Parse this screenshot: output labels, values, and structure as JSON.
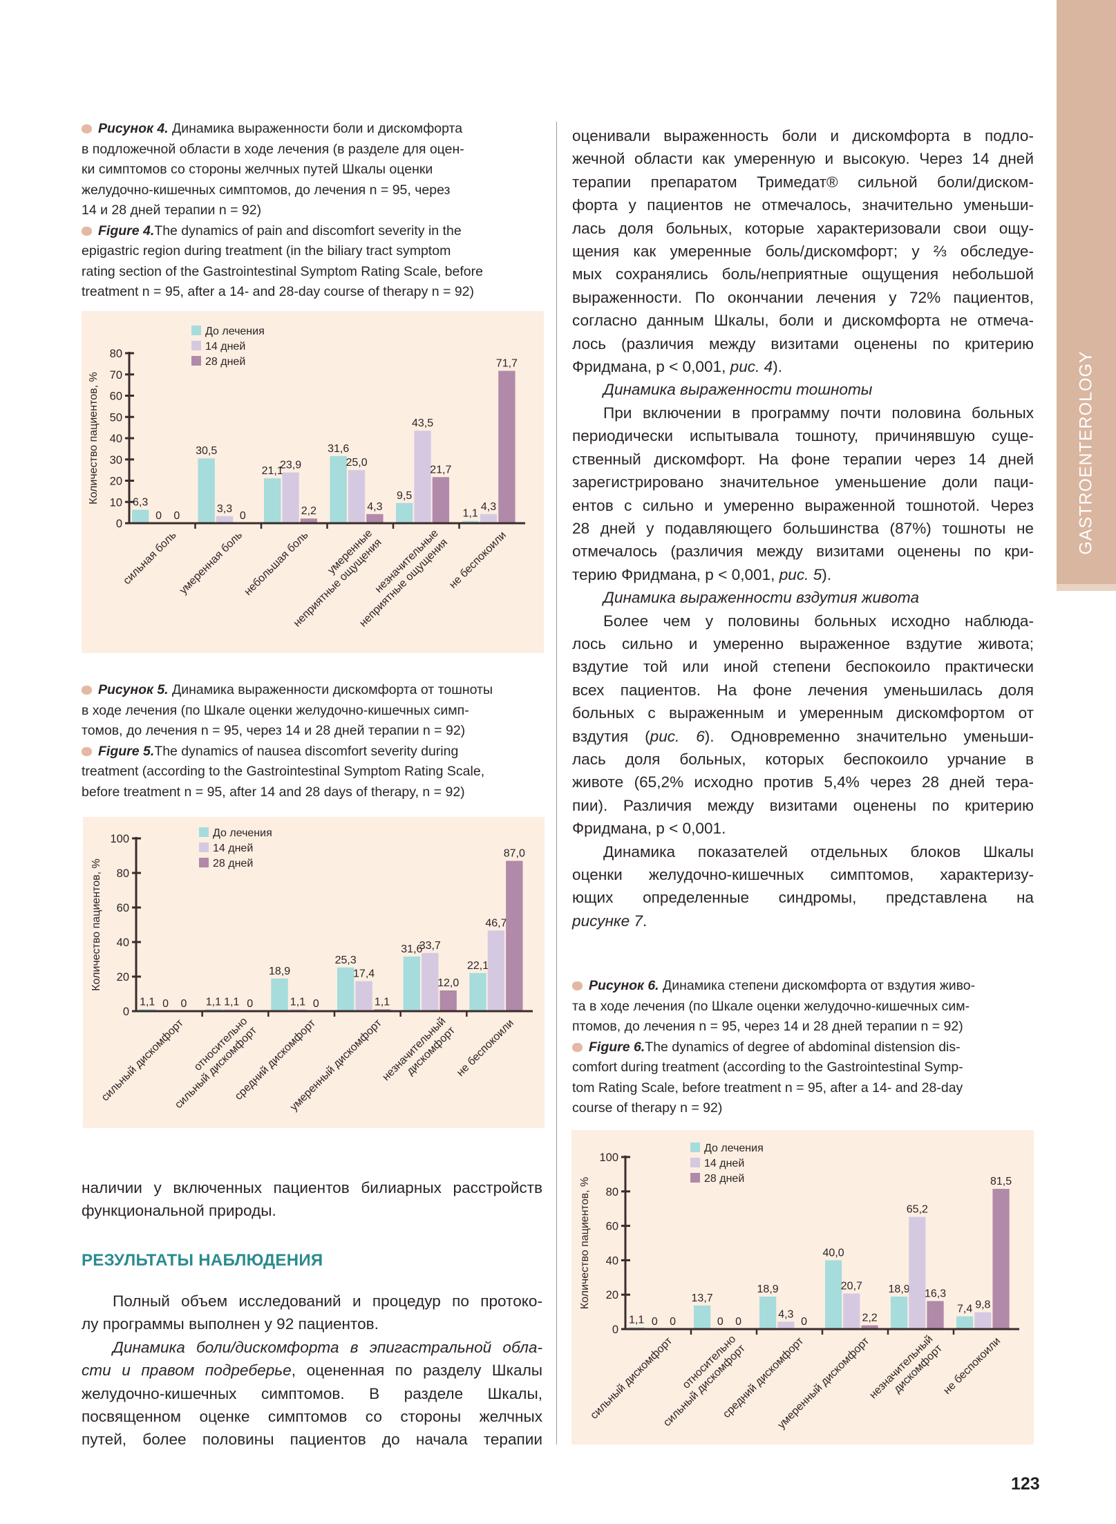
{
  "side_tab": {
    "label": "GASTROENTEROLOGY",
    "color": "#d9b6a0"
  },
  "page_number": "123",
  "colors": {
    "before": "#a6dcdc",
    "day14": "#d5c9e2",
    "day28": "#b08aa8",
    "chart_bg": "#fdeee2",
    "heading": "#2a8b8f"
  },
  "captions": [
    {
      "ru": [
        [
          [
            "Рисунок 4.",
            "b"
          ],
          [
            " Динамика выраженности боли и дискомфорта",
            ""
          ]
        ],
        [
          [
            "в подложечной области в ходе лечения (в разделе для оцен-",
            ""
          ]
        ],
        [
          [
            "ки симптомов со стороны желчных путей Шкалы оценки",
            ""
          ]
        ],
        [
          [
            "желудочно-кишечных симптомов, до лечения n = 95, через",
            ""
          ]
        ],
        [
          [
            "14 и 28 дней терапии n = 92)",
            ""
          ]
        ]
      ],
      "en": [
        [
          [
            "Figure 4.",
            "b"
          ],
          [
            "The dynamics of pain and discomfort severity in the",
            ""
          ]
        ],
        [
          [
            "epigastric region during treatment (in the biliary tract symptom",
            ""
          ]
        ],
        [
          [
            "rating section of the Gastrointestinal Symptom Rating Scale, before",
            ""
          ]
        ],
        [
          [
            "treatment n = 95, after a 14- and 28-day course of therapy n = 92)",
            ""
          ]
        ]
      ]
    },
    {
      "ru": [
        [
          [
            "Рисунок 5.",
            "b"
          ],
          [
            " Динамика выраженности дискомфорта от тошноты",
            ""
          ]
        ],
        [
          [
            "в ходе лечения (по Шкале оценки желудочно-кишечных симп-",
            ""
          ]
        ],
        [
          [
            "томов, до лечения n = 95, через 14 и 28 дней терапии n = 92)",
            ""
          ]
        ]
      ],
      "en": [
        [
          [
            "Figure 5.",
            "b"
          ],
          [
            "The dynamics of nausea discomfort severity during",
            ""
          ]
        ],
        [
          [
            "treatment (according to the Gastrointestinal Symptom Rating Scale,",
            ""
          ]
        ],
        [
          [
            "before treatment n = 95, after 14 and 28 days of therapy, n = 92)",
            ""
          ]
        ]
      ]
    },
    {
      "ru": [
        [
          [
            "Рисунок 6.",
            "b"
          ],
          [
            " Динамика степени дискомфорта от вздутия живо-",
            ""
          ]
        ],
        [
          [
            "та в ходе лечения (по Шкале оценки желудочно-кишечных сим-",
            ""
          ]
        ],
        [
          [
            "птомов, до лечения n = 95, через 14 и 28 дней терапии n = 92)",
            ""
          ]
        ]
      ],
      "en": [
        [
          [
            "Figure 6.",
            "b"
          ],
          [
            "The dynamics of degree of abdominal distension dis-",
            ""
          ]
        ],
        [
          [
            "comfort during treatment (according to the Gastrointestinal Symp-",
            ""
          ]
        ],
        [
          [
            "tom Rating Scale, before treatment n = 95, after a 14- and 28-day",
            ""
          ]
        ],
        [
          [
            "course of therapy n = 92)",
            ""
          ]
        ]
      ]
    }
  ],
  "left_text": {
    "intro": [
      {
        "ind": false,
        "last": false,
        "seg": [
          [
            "наличии у включенных пациентов билиарных расстройств",
            ""
          ]
        ]
      },
      {
        "ind": false,
        "last": true,
        "seg": [
          [
            "функциональной природы.",
            ""
          ]
        ]
      }
    ],
    "heading": "РЕЗУЛЬТАТЫ НАБЛЮДЕНИЯ",
    "para": [
      {
        "ind": true,
        "last": false,
        "seg": [
          [
            "Полный объем исследований и процедур по протоко-",
            ""
          ]
        ]
      },
      {
        "ind": false,
        "last": true,
        "seg": [
          [
            "лу программы выполнен у 92 пациентов.",
            ""
          ]
        ]
      },
      {
        "ind": true,
        "last": false,
        "seg": [
          [
            "Динамика боли/дискомфорта в эпигастральной обла-",
            "i"
          ]
        ]
      },
      {
        "ind": false,
        "last": false,
        "seg": [
          [
            "сти и правом подреберье",
            "i"
          ],
          [
            ", оцененная по разделу Шкалы",
            ""
          ]
        ]
      },
      {
        "ind": false,
        "last": false,
        "seg": [
          [
            "желудочно-кишечных симптомов. В разделе Шкалы,",
            ""
          ]
        ]
      },
      {
        "ind": false,
        "last": false,
        "seg": [
          [
            "посвященном оценке симптомов со стороны желчных",
            ""
          ]
        ]
      },
      {
        "ind": false,
        "last": false,
        "seg": [
          [
            "путей, более половины пациентов до начала терапии",
            ""
          ]
        ]
      }
    ]
  },
  "right_text": [
    {
      "ind": false,
      "last": false,
      "seg": [
        [
          "оценивали выраженность боли и дискомфорта в подло-",
          ""
        ]
      ]
    },
    {
      "ind": false,
      "last": false,
      "seg": [
        [
          "жечной области как умеренную и высокую. Через 14 дней",
          ""
        ]
      ]
    },
    {
      "ind": false,
      "last": false,
      "seg": [
        [
          "терапии препаратом Тримедат® сильной боли/диском-",
          ""
        ]
      ]
    },
    {
      "ind": false,
      "last": false,
      "seg": [
        [
          "форта у пациентов не отмечалось, значительно уменьши-",
          ""
        ]
      ]
    },
    {
      "ind": false,
      "last": false,
      "seg": [
        [
          "лась доля больных, которые характеризовали свои ощу-",
          ""
        ]
      ]
    },
    {
      "ind": false,
      "last": false,
      "seg": [
        [
          "щения как умеренные боль/дискомфорт; у ⅔ обследуе-",
          ""
        ]
      ]
    },
    {
      "ind": false,
      "last": false,
      "seg": [
        [
          "мых сохранялись боль/неприятные ощущения небольшой",
          ""
        ]
      ]
    },
    {
      "ind": false,
      "last": false,
      "seg": [
        [
          "выраженности. По окончании лечения у 72% пациентов,",
          ""
        ]
      ]
    },
    {
      "ind": false,
      "last": false,
      "seg": [
        [
          "согласно данным Шкалы, боли и дискомфорта не отмеча-",
          ""
        ]
      ]
    },
    {
      "ind": false,
      "last": false,
      "seg": [
        [
          "лось (различия между визитами оценены по критерию",
          ""
        ]
      ]
    },
    {
      "ind": false,
      "last": true,
      "seg": [
        [
          "Фридмана, p < 0,001, ",
          ""
        ],
        [
          "рис. 4",
          "i"
        ],
        [
          ").",
          ""
        ]
      ]
    },
    {
      "ind": true,
      "last": true,
      "seg": [
        [
          "Динамика выраженности тошноты",
          "i"
        ]
      ]
    },
    {
      "ind": true,
      "last": false,
      "seg": [
        [
          "При включении в программу почти половина больных",
          ""
        ]
      ]
    },
    {
      "ind": false,
      "last": false,
      "seg": [
        [
          "периодически испытывала тошноту, причинявшую суще-",
          ""
        ]
      ]
    },
    {
      "ind": false,
      "last": false,
      "seg": [
        [
          "ственный дискомфорт. На фоне терапии через 14 дней",
          ""
        ]
      ]
    },
    {
      "ind": false,
      "last": false,
      "seg": [
        [
          "зарегистрировано значительное уменьшение доли паци-",
          ""
        ]
      ]
    },
    {
      "ind": false,
      "last": false,
      "seg": [
        [
          "ентов с сильно и умеренно выраженной тошнотой. Через",
          ""
        ]
      ]
    },
    {
      "ind": false,
      "last": false,
      "seg": [
        [
          "28 дней у подавляющего большинства (87%) тошноты не",
          ""
        ]
      ]
    },
    {
      "ind": false,
      "last": false,
      "seg": [
        [
          "отмечалось (различия между визитами оценены по кри-",
          ""
        ]
      ]
    },
    {
      "ind": false,
      "last": true,
      "seg": [
        [
          "терию Фридмана, p < 0,001, ",
          ""
        ],
        [
          "рис. 5",
          "i"
        ],
        [
          ").",
          ""
        ]
      ]
    },
    {
      "ind": true,
      "last": true,
      "seg": [
        [
          "Динамика выраженности вздутия живота",
          "i"
        ]
      ]
    },
    {
      "ind": true,
      "last": false,
      "seg": [
        [
          "Более чем у половины больных исходно наблюда-",
          ""
        ]
      ]
    },
    {
      "ind": false,
      "last": false,
      "seg": [
        [
          "лось сильно и умеренно выраженное вздутие живота;",
          ""
        ]
      ]
    },
    {
      "ind": false,
      "last": false,
      "seg": [
        [
          "вздутие той или иной степени беспокоило практически",
          ""
        ]
      ]
    },
    {
      "ind": false,
      "last": false,
      "seg": [
        [
          "всех пациентов. На фоне лечения уменьшилась доля",
          ""
        ]
      ]
    },
    {
      "ind": false,
      "last": false,
      "seg": [
        [
          "больных с выраженным и умеренным дискомфортом от",
          ""
        ]
      ]
    },
    {
      "ind": false,
      "last": false,
      "seg": [
        [
          "вздутия (",
          ""
        ],
        [
          "рис. 6",
          "i"
        ],
        [
          "). Одновременно значительно уменьши-",
          ""
        ]
      ]
    },
    {
      "ind": false,
      "last": false,
      "seg": [
        [
          "лась доля больных, которых беспокоило урчание в",
          ""
        ]
      ]
    },
    {
      "ind": false,
      "last": false,
      "seg": [
        [
          "животе (65,2% исходно против 5,4% через 28 дней тера-",
          ""
        ]
      ]
    },
    {
      "ind": false,
      "last": false,
      "seg": [
        [
          "пии). Различия между визитами оценены по критерию",
          ""
        ]
      ]
    },
    {
      "ind": false,
      "last": true,
      "seg": [
        [
          "Фридмана, p < 0,001.",
          ""
        ]
      ]
    },
    {
      "ind": true,
      "last": false,
      "seg": [
        [
          "Динамика показателей отдельных блоков Шкалы",
          ""
        ]
      ]
    },
    {
      "ind": false,
      "last": false,
      "seg": [
        [
          "оценки желудочно-кишечных симптомов, характеризу-",
          ""
        ]
      ]
    },
    {
      "ind": false,
      "last": false,
      "seg": [
        [
          "ющих определенные синдромы, представлена на",
          ""
        ]
      ]
    },
    {
      "ind": false,
      "last": true,
      "seg": [
        [
          "рисунке 7",
          "i"
        ],
        [
          ".",
          ""
        ]
      ]
    }
  ],
  "chart_data": [
    {
      "type": "bar",
      "ylabel": "Количество пациентов, %",
      "ylim": [
        0,
        80
      ],
      "yticks": [
        0,
        10,
        20,
        30,
        40,
        50,
        60,
        70,
        80
      ],
      "legend_position": "top-left",
      "categories": [
        [
          "сильная боль"
        ],
        [
          "умеренная боль"
        ],
        [
          "небольшая боль"
        ],
        [
          "умеренные",
          "неприятные ощущения"
        ],
        [
          "незначительные",
          "неприятные ощущения"
        ],
        [
          "не беспокоили"
        ]
      ],
      "series": [
        {
          "name": "До лечения",
          "values": [
            6.3,
            30.5,
            21.1,
            31.6,
            9.5,
            1.1
          ],
          "labels": [
            "6,3",
            "30,5",
            "21,1",
            "31,6",
            "9,5",
            "1,1"
          ]
        },
        {
          "name": "14 дней",
          "values": [
            0,
            3.3,
            23.9,
            25.0,
            43.5,
            4.3
          ],
          "labels": [
            "0",
            "3,3",
            "23,9",
            "25,0",
            "43,5",
            "4,3"
          ]
        },
        {
          "name": "28 дней",
          "values": [
            0,
            0,
            2.2,
            4.3,
            21.7,
            71.7
          ],
          "labels": [
            "0",
            "0",
            "2,2",
            "4,3",
            "21,7",
            "71,7"
          ]
        }
      ]
    },
    {
      "type": "bar",
      "ylabel": "Количество пациентов, %",
      "ylim": [
        0,
        100
      ],
      "yticks": [
        0,
        20,
        40,
        60,
        80,
        100
      ],
      "legend_position": "top-left",
      "categories": [
        [
          "сильный дискомфорт"
        ],
        [
          "относительно",
          "сильный дискомфорт"
        ],
        [
          "средний дискомфорт"
        ],
        [
          "умеренный дискомфорт"
        ],
        [
          "незначительный",
          "дискомфорт"
        ],
        [
          "не беспокоили"
        ]
      ],
      "series": [
        {
          "name": "До лечения",
          "values": [
            1.1,
            1.1,
            18.9,
            25.3,
            31.6,
            22.1
          ],
          "labels": [
            "1,1",
            "1,1",
            "18,9",
            "25,3",
            "31,6",
            "22,1"
          ]
        },
        {
          "name": "14 дней",
          "values": [
            0,
            1.1,
            1.1,
            17.4,
            33.7,
            46.7
          ],
          "labels": [
            "0",
            "1,1",
            "1,1",
            "17,4",
            "33,7",
            "46,7"
          ]
        },
        {
          "name": "28 дней",
          "values": [
            0,
            0,
            0,
            1.1,
            12.0,
            87.0
          ],
          "labels": [
            "0",
            "0",
            "0",
            "1,1",
            "12,0",
            "87,0"
          ]
        }
      ]
    },
    {
      "type": "bar",
      "ylabel": "Количество пациентов, %",
      "ylim": [
        0,
        100
      ],
      "yticks": [
        0,
        20,
        40,
        60,
        80,
        100
      ],
      "legend_position": "top-left",
      "categories": [
        [
          "сильный дискомфорт"
        ],
        [
          "относительно",
          "сильный дискомфорт"
        ],
        [
          "средний дискомфорт"
        ],
        [
          "умеренный дискомфорт"
        ],
        [
          "незначительный",
          "дискомфорт"
        ],
        [
          "не беспокоили"
        ]
      ],
      "series": [
        {
          "name": "До лечения",
          "values": [
            1.1,
            13.7,
            18.9,
            40.0,
            18.9,
            7.4
          ],
          "labels": [
            "1,1",
            "13,7",
            "18,9",
            "40,0",
            "18,9",
            "7,4"
          ]
        },
        {
          "name": "14 дней",
          "values": [
            0,
            0,
            4.3,
            20.7,
            65.2,
            9.8
          ],
          "labels": [
            "0",
            "0",
            "4,3",
            "20,7",
            "65,2",
            "9,8"
          ]
        },
        {
          "name": "28 дней",
          "values": [
            0,
            0,
            0,
            2.2,
            16.3,
            81.5
          ],
          "labels": [
            "0",
            "0",
            "0",
            "2,2",
            "16,3",
            "81,5"
          ]
        }
      ]
    }
  ]
}
